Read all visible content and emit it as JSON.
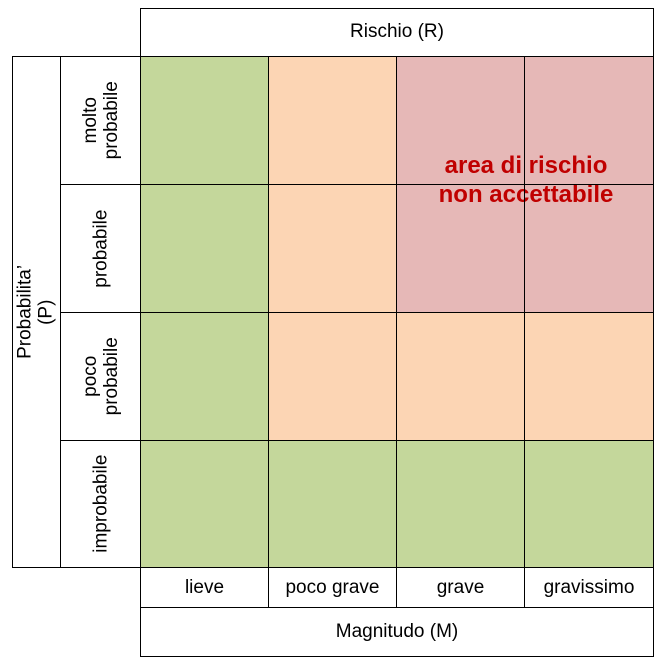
{
  "title": "Rischio (R)",
  "y_axis_label": "Probabilita’ (P)",
  "x_axis_label": "Magnitudo (M)",
  "row_labels": [
    "molto\nprobabile",
    "probabile",
    "poco\nprobabile",
    "improbabile"
  ],
  "column_labels": [
    "lieve",
    "poco grave",
    "grave",
    "gravissimo"
  ],
  "colors": {
    "green": "#c4d79b",
    "peach": "#fcd5b4",
    "rose": "#e6b8b7",
    "text_red": "#c00000"
  },
  "matrix_levels": [
    [
      "green",
      "peach",
      "rose",
      "rose"
    ],
    [
      "green",
      "peach",
      "rose",
      "rose"
    ],
    [
      "green",
      "peach",
      "peach",
      "peach"
    ],
    [
      "green",
      "green",
      "green",
      "green"
    ]
  ],
  "risk_area_label": "area di rischio\nnon accettabile"
}
